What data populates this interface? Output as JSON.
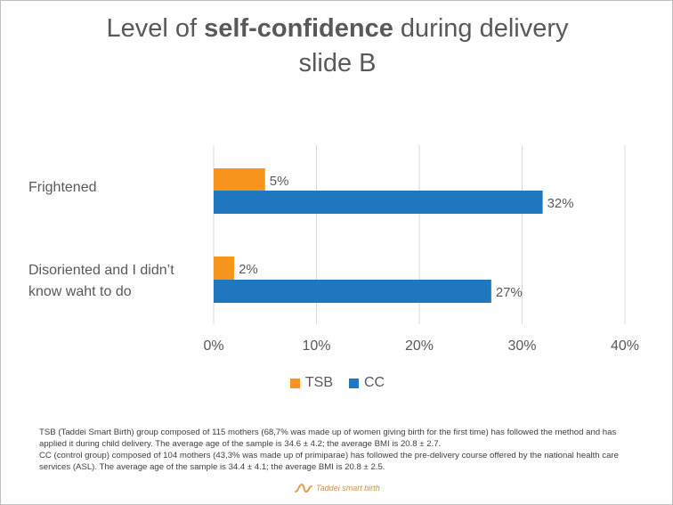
{
  "title": {
    "prefix": "Level of ",
    "bold": "self-confidence",
    "suffix": " during delivery",
    "line2": "slide B"
  },
  "colors": {
    "TSB": "#F7941D",
    "CC": "#1F77C0",
    "grid": "#d9d9d9",
    "text": "#595959"
  },
  "chart_data": {
    "type": "bar",
    "orientation": "horizontal",
    "categories": [
      "Frightened",
      "Disoriented and I didn’t know waht to do"
    ],
    "category_lines": [
      [
        "Frightened"
      ],
      [
        "Disoriented and I didn’t",
        "know waht to do"
      ]
    ],
    "series": [
      {
        "name": "TSB",
        "values": [
          5,
          2
        ],
        "labels": [
          "5%",
          "2%"
        ]
      },
      {
        "name": "CC",
        "values": [
          32,
          27
        ],
        "labels": [
          "32%",
          "27%"
        ]
      }
    ],
    "xlim": [
      0,
      40
    ],
    "xticks": [
      0,
      10,
      20,
      30,
      40
    ],
    "xtick_labels": [
      "0%",
      "10%",
      "20%",
      "30%",
      "40%"
    ],
    "grid": true,
    "legend": "bottom"
  },
  "legend": {
    "tsb": "TSB",
    "cc": "CC"
  },
  "footnote": {
    "line1": "TSB (Taddei Smart Birth) group composed of 115 mothers (68,7% was made up of women giving birth for the first time) has followed the method and has applied it during child delivery. The average age of the sample is 34.6 ± 4.2; the average BMI is 20.8 ± 2.7.",
    "line2": "CC (control group) composed of 104 mothers (43,3% was made up of primiparae) has followed the pre-delivery course offered by the national health care services (ASL). The average age of the sample is 34.4 ± 4.1; the average BMI is 20.8 ± 2.5."
  },
  "logo": {
    "text": "Taddei smart birth"
  }
}
